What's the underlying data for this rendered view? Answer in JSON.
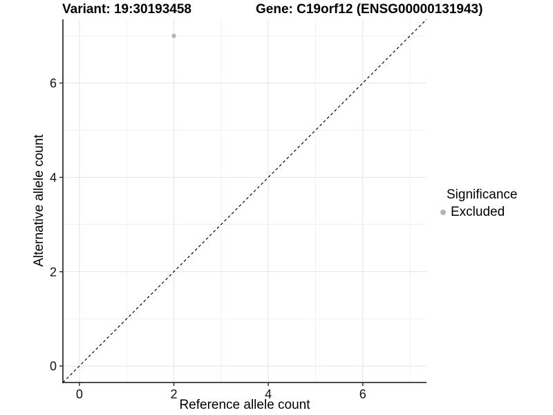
{
  "chart_data": {
    "type": "scatter",
    "title_left": "Variant: 19:30193458",
    "title_right": "Gene: C19orf12 (ENSG00000131943)",
    "xlabel": "Reference allele count",
    "ylabel": "Alternative allele count",
    "xlim": [
      -0.35,
      7.35
    ],
    "ylim": [
      -0.35,
      7.35
    ],
    "x_ticks": [
      0,
      2,
      4,
      6
    ],
    "y_ticks": [
      0,
      2,
      4,
      6
    ],
    "x_minor_gridlines": [
      1,
      3,
      5,
      7
    ],
    "y_minor_gridlines": [
      1,
      3,
      5,
      7
    ],
    "grid": "major and minor gridlines on white panel",
    "reference_line": {
      "type": "identity y=x",
      "style": "dashed",
      "color": "#000000"
    },
    "series": [
      {
        "name": "Excluded",
        "color": "#b5b5b5",
        "marker": "circle",
        "points": [
          [
            2,
            7
          ]
        ]
      }
    ],
    "legend": {
      "title": "Significance",
      "position": "right",
      "items": [
        {
          "label": "Excluded",
          "color": "#b5b5b5"
        }
      ]
    }
  },
  "styles": {
    "axis_color": "#333333",
    "tick_label_color": "#111111",
    "grid_major_color": "#e4e4e4",
    "grid_minor_color": "#f1f1f1",
    "point_radius": 3.2,
    "tick_font_size": 18
  }
}
